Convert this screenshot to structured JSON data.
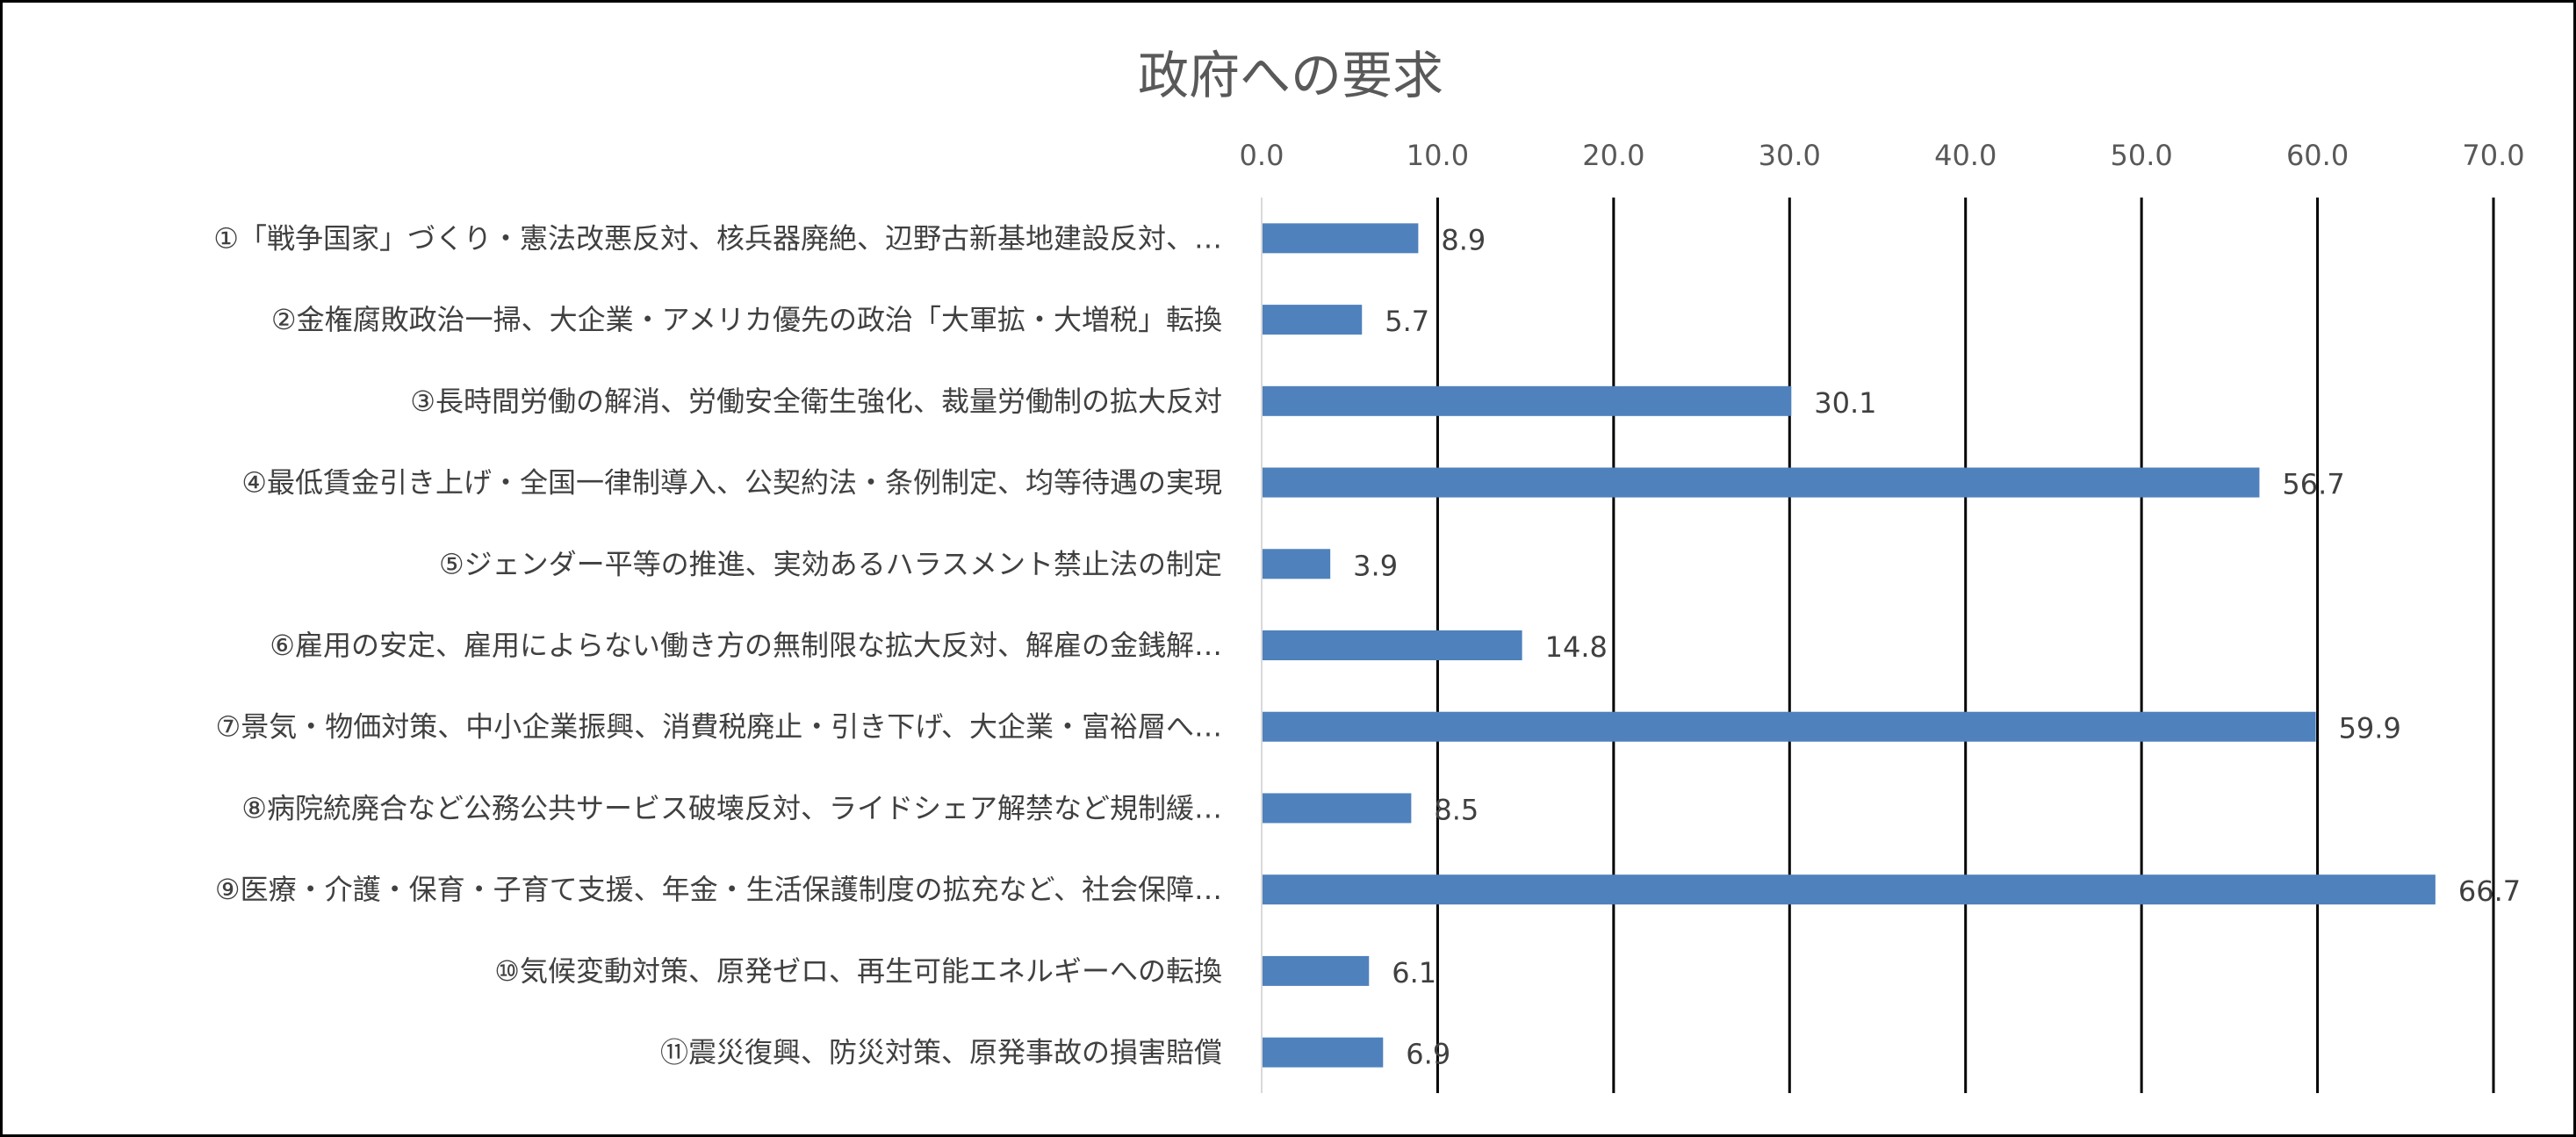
{
  "chart_data": {
    "type": "bar",
    "orientation": "horizontal",
    "title": "政府への要求",
    "categories": [
      "①「戦争国家」づくり・憲法改悪反対、核兵器廃絶、辺野古新基地建設反対、…",
      "②金権腐敗政治一掃、大企業・アメリカ優先の政治「大軍拡・大増税」転換",
      "③長時間労働の解消、労働安全衛生強化、裁量労働制の拡大反対",
      "④最低賃金引き上げ・全国一律制導入、公契約法・条例制定、均等待遇の実現",
      "⑤ジェンダー平等の推進、実効あるハラスメント禁止法の制定",
      "⑥雇用の安定、雇用によらない働き方の無制限な拡大反対、解雇の金銭解…",
      "⑦景気・物価対策、中小企業振興、消費税廃止・引き下げ、大企業・富裕層へ…",
      "⑧病院統廃合など公務公共サービス破壊反対、ライドシェア解禁など規制緩…",
      "⑨医療・介護・保育・子育て支援、年金・生活保護制度の拡充など、社会保障…",
      "⑩気候変動対策、原発ゼロ、再生可能エネルギーへの転換",
      "⑪震災復興、防災対策、原発事故の損害賠償"
    ],
    "values": [
      8.9,
      5.7,
      30.1,
      56.7,
      3.9,
      14.8,
      59.9,
      8.5,
      66.7,
      6.1,
      6.9
    ],
    "value_labels": [
      "8.9",
      "5.7",
      "30.1",
      "56.7",
      "3.9",
      "14.8",
      "59.9",
      "8.5",
      "66.7",
      "6.1",
      "6.9"
    ],
    "xlim": [
      0,
      70
    ],
    "xticks": [
      0,
      10,
      20,
      30,
      40,
      50,
      60,
      70
    ],
    "xtick_labels": [
      "0.0",
      "10.0",
      "20.0",
      "30.0",
      "40.0",
      "50.0",
      "60.0",
      "70.0"
    ],
    "axis_position": "top",
    "grid": true,
    "legend": false,
    "bar_color": "#4F81BD"
  }
}
